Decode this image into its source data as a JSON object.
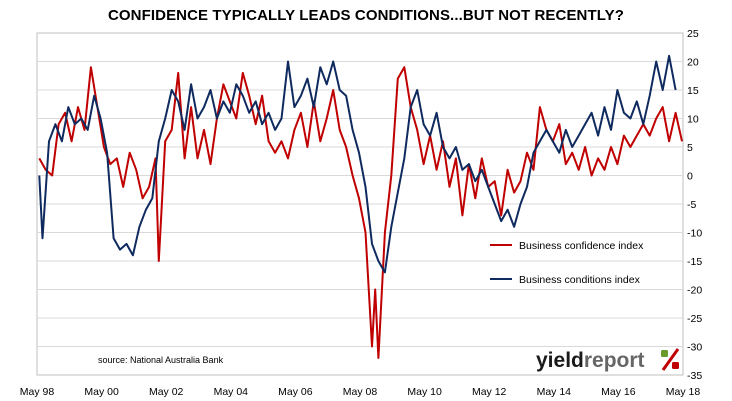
{
  "chart_data": {
    "type": "line",
    "title": "CONFIDENCE TYPICALLY LEADS CONDITIONS...BUT NOT RECENTLY?",
    "xlabel": "",
    "ylabel": "",
    "x_tick_labels": [
      "May 98",
      "May 00",
      "May 02",
      "May 04",
      "May 06",
      "May 08",
      "May 10",
      "May 12",
      "May 14",
      "May 16",
      "May 18"
    ],
    "x_range": [
      "1998-05",
      "2018-05"
    ],
    "ylim": [
      -35,
      25
    ],
    "y_ticks": [
      25,
      20,
      15,
      10,
      5,
      0,
      -5,
      -10,
      -15,
      -20,
      -25,
      -30,
      -35
    ],
    "y_axis_position": "right",
    "grid": "horizontal",
    "legend_placement": "right-center",
    "source_note": "source: National Australia Bank",
    "series": [
      {
        "name": "Business confidence index",
        "color": "#c00000",
        "points": [
          [
            1998.4,
            3
          ],
          [
            1998.6,
            1
          ],
          [
            1998.8,
            0
          ],
          [
            1999.0,
            9
          ],
          [
            1999.2,
            11
          ],
          [
            1999.4,
            6
          ],
          [
            1999.6,
            12
          ],
          [
            1999.8,
            8
          ],
          [
            2000.0,
            19
          ],
          [
            2000.2,
            12
          ],
          [
            2000.4,
            5
          ],
          [
            2000.6,
            2
          ],
          [
            2000.8,
            3
          ],
          [
            2001.0,
            -2
          ],
          [
            2001.2,
            4
          ],
          [
            2001.4,
            1
          ],
          [
            2001.6,
            -4
          ],
          [
            2001.8,
            -2
          ],
          [
            2002.0,
            3
          ],
          [
            2002.1,
            -15
          ],
          [
            2002.3,
            6
          ],
          [
            2002.5,
            8
          ],
          [
            2002.7,
            18
          ],
          [
            2002.9,
            3
          ],
          [
            2003.1,
            12
          ],
          [
            2003.3,
            3
          ],
          [
            2003.5,
            8
          ],
          [
            2003.7,
            2
          ],
          [
            2003.9,
            10
          ],
          [
            2004.1,
            16
          ],
          [
            2004.3,
            13
          ],
          [
            2004.5,
            10
          ],
          [
            2004.7,
            18
          ],
          [
            2004.9,
            14
          ],
          [
            2005.1,
            9
          ],
          [
            2005.3,
            14
          ],
          [
            2005.5,
            6
          ],
          [
            2005.7,
            4
          ],
          [
            2005.9,
            6
          ],
          [
            2006.1,
            3
          ],
          [
            2006.3,
            8
          ],
          [
            2006.5,
            11
          ],
          [
            2006.7,
            5
          ],
          [
            2006.9,
            13
          ],
          [
            2007.1,
            6
          ],
          [
            2007.3,
            10
          ],
          [
            2007.5,
            15
          ],
          [
            2007.7,
            8
          ],
          [
            2007.9,
            5
          ],
          [
            2008.1,
            0
          ],
          [
            2008.3,
            -4
          ],
          [
            2008.5,
            -10
          ],
          [
            2008.7,
            -30
          ],
          [
            2008.8,
            -20
          ],
          [
            2008.9,
            -32
          ],
          [
            2009.1,
            -10
          ],
          [
            2009.3,
            0
          ],
          [
            2009.5,
            17
          ],
          [
            2009.7,
            19
          ],
          [
            2009.9,
            12
          ],
          [
            2010.1,
            8
          ],
          [
            2010.3,
            2
          ],
          [
            2010.5,
            7
          ],
          [
            2010.7,
            1
          ],
          [
            2010.9,
            6
          ],
          [
            2011.1,
            -2
          ],
          [
            2011.3,
            3
          ],
          [
            2011.5,
            -7
          ],
          [
            2011.7,
            2
          ],
          [
            2011.9,
            -4
          ],
          [
            2012.1,
            3
          ],
          [
            2012.3,
            -2
          ],
          [
            2012.5,
            -1
          ],
          [
            2012.7,
            -7
          ],
          [
            2012.9,
            1
          ],
          [
            2013.1,
            -3
          ],
          [
            2013.3,
            -1
          ],
          [
            2013.5,
            4
          ],
          [
            2013.7,
            1
          ],
          [
            2013.9,
            12
          ],
          [
            2014.1,
            8
          ],
          [
            2014.3,
            6
          ],
          [
            2014.5,
            9
          ],
          [
            2014.7,
            2
          ],
          [
            2014.9,
            4
          ],
          [
            2015.1,
            1
          ],
          [
            2015.3,
            5
          ],
          [
            2015.5,
            0
          ],
          [
            2015.7,
            3
          ],
          [
            2015.9,
            1
          ],
          [
            2016.1,
            5
          ],
          [
            2016.3,
            2
          ],
          [
            2016.5,
            7
          ],
          [
            2016.7,
            5
          ],
          [
            2016.9,
            7
          ],
          [
            2017.1,
            9
          ],
          [
            2017.3,
            7
          ],
          [
            2017.5,
            10
          ],
          [
            2017.7,
            12
          ],
          [
            2017.9,
            6
          ],
          [
            2018.1,
            11
          ],
          [
            2018.3,
            6
          ]
        ]
      },
      {
        "name": "Business conditions index",
        "color": "#0f2a5e",
        "points": [
          [
            1998.4,
            0
          ],
          [
            1998.5,
            -11
          ],
          [
            1998.7,
            6
          ],
          [
            1998.9,
            9
          ],
          [
            1999.1,
            6
          ],
          [
            1999.3,
            12
          ],
          [
            1999.5,
            9
          ],
          [
            1999.7,
            10
          ],
          [
            1999.9,
            8
          ],
          [
            2000.1,
            14
          ],
          [
            2000.3,
            10
          ],
          [
            2000.5,
            4
          ],
          [
            2000.7,
            -11
          ],
          [
            2000.9,
            -13
          ],
          [
            2001.1,
            -12
          ],
          [
            2001.3,
            -14
          ],
          [
            2001.5,
            -9
          ],
          [
            2001.7,
            -6
          ],
          [
            2001.9,
            -4
          ],
          [
            2002.1,
            6
          ],
          [
            2002.3,
            10
          ],
          [
            2002.5,
            15
          ],
          [
            2002.7,
            13
          ],
          [
            2002.9,
            8
          ],
          [
            2003.1,
            16
          ],
          [
            2003.3,
            10
          ],
          [
            2003.5,
            12
          ],
          [
            2003.7,
            15
          ],
          [
            2003.9,
            10
          ],
          [
            2004.1,
            13
          ],
          [
            2004.3,
            11
          ],
          [
            2004.5,
            16
          ],
          [
            2004.7,
            14
          ],
          [
            2004.9,
            11
          ],
          [
            2005.1,
            13
          ],
          [
            2005.3,
            9
          ],
          [
            2005.5,
            11
          ],
          [
            2005.7,
            8
          ],
          [
            2005.9,
            10
          ],
          [
            2006.1,
            20
          ],
          [
            2006.3,
            12
          ],
          [
            2006.5,
            14
          ],
          [
            2006.7,
            17
          ],
          [
            2006.9,
            12
          ],
          [
            2007.1,
            19
          ],
          [
            2007.3,
            16
          ],
          [
            2007.5,
            20
          ],
          [
            2007.7,
            15
          ],
          [
            2007.9,
            14
          ],
          [
            2008.1,
            8
          ],
          [
            2008.3,
            4
          ],
          [
            2008.5,
            -2
          ],
          [
            2008.7,
            -12
          ],
          [
            2008.9,
            -15
          ],
          [
            2009.1,
            -17
          ],
          [
            2009.3,
            -9
          ],
          [
            2009.5,
            -3
          ],
          [
            2009.7,
            3
          ],
          [
            2009.9,
            12
          ],
          [
            2010.1,
            15
          ],
          [
            2010.3,
            9
          ],
          [
            2010.5,
            7
          ],
          [
            2010.7,
            11
          ],
          [
            2010.9,
            5
          ],
          [
            2011.1,
            3
          ],
          [
            2011.3,
            5
          ],
          [
            2011.5,
            1
          ],
          [
            2011.7,
            2
          ],
          [
            2011.9,
            -1
          ],
          [
            2012.1,
            1
          ],
          [
            2012.3,
            -2
          ],
          [
            2012.5,
            -5
          ],
          [
            2012.7,
            -8
          ],
          [
            2012.9,
            -6
          ],
          [
            2013.1,
            -9
          ],
          [
            2013.3,
            -5
          ],
          [
            2013.5,
            -2
          ],
          [
            2013.7,
            4
          ],
          [
            2013.9,
            6
          ],
          [
            2014.1,
            8
          ],
          [
            2014.3,
            6
          ],
          [
            2014.5,
            4
          ],
          [
            2014.7,
            8
          ],
          [
            2014.9,
            5
          ],
          [
            2015.1,
            7
          ],
          [
            2015.3,
            9
          ],
          [
            2015.5,
            11
          ],
          [
            2015.7,
            7
          ],
          [
            2015.9,
            12
          ],
          [
            2016.1,
            8
          ],
          [
            2016.3,
            15
          ],
          [
            2016.5,
            11
          ],
          [
            2016.7,
            10
          ],
          [
            2016.9,
            13
          ],
          [
            2017.1,
            9
          ],
          [
            2017.3,
            14
          ],
          [
            2017.5,
            20
          ],
          [
            2017.7,
            15
          ],
          [
            2017.9,
            21
          ],
          [
            2018.1,
            15
          ]
        ]
      }
    ]
  },
  "logo": {
    "text_dark": "yield",
    "text_light": "report",
    "symbol": "%",
    "color_dark": "#1a1a1a",
    "color_light": "#666666",
    "color_symbol_top": "#6a9a2a",
    "color_symbol_bottom": "#c00000"
  }
}
